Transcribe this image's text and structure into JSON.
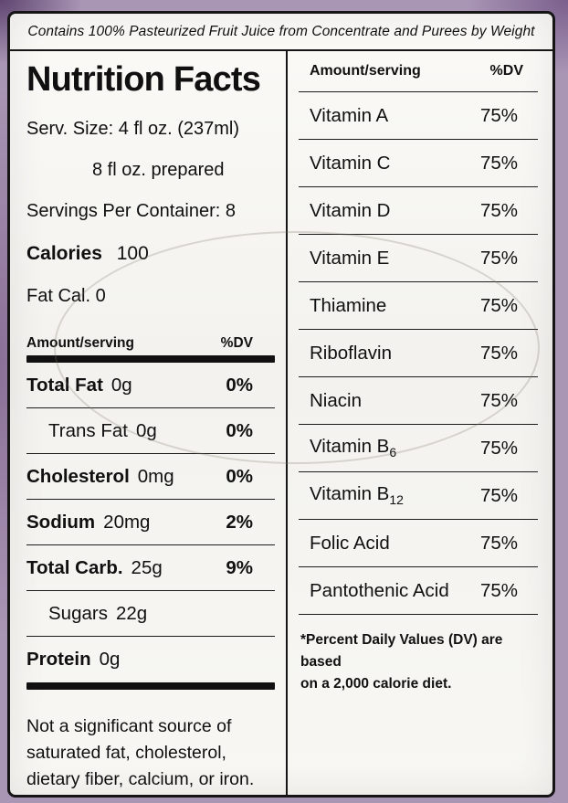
{
  "colors": {
    "backdrop": "#a995b4",
    "label_bg": "#f8f7f3",
    "ink": "#101010"
  },
  "top_note": "Contains 100% Pasteurized Fruit Juice from Concentrate and Purees by Weight",
  "left": {
    "title": "Nutrition Facts",
    "serv_size_line1": "Serv. Size: 4 fl oz. (237ml)",
    "serv_size_line2": "8 fl oz. prepared",
    "servings_per_container": "Servings Per Container: 8",
    "calories_label": "Calories",
    "calories_value": "100",
    "fat_cal": "Fat Cal. 0",
    "table": {
      "header_amount": "Amount/serving",
      "header_dv": "%DV",
      "rows": [
        {
          "label": "Total Fat",
          "value": "0g",
          "dv": "0%"
        },
        {
          "label": "Trans Fat",
          "value": "0g",
          "dv": "0%"
        },
        {
          "label": "Cholesterol",
          "value": "0mg",
          "dv": "0%"
        },
        {
          "label": "Sodium",
          "value": "20mg",
          "dv": "2%"
        },
        {
          "label": "Total Carb.",
          "value": "25g",
          "dv": "9%"
        },
        {
          "label": "Sugars",
          "value": "22g",
          "dv": ""
        },
        {
          "label": "Protein",
          "value": "0g",
          "dv": ""
        }
      ]
    },
    "not_significant_lines": [
      "Not a significant source of",
      "saturated fat, cholesterol,",
      "dietary fiber, calcium, or iron."
    ]
  },
  "right": {
    "header_amount": "Amount/serving",
    "header_dv": "%DV",
    "rows": [
      {
        "label": "Vitamin A",
        "dv": "75%"
      },
      {
        "label": "Vitamin C",
        "dv": "75%"
      },
      {
        "label": "Vitamin D",
        "dv": "75%"
      },
      {
        "label": "Vitamin E",
        "dv": "75%"
      },
      {
        "label": "Thiamine",
        "dv": "75%"
      },
      {
        "label": "Riboflavin",
        "dv": "75%"
      },
      {
        "label": "Niacin",
        "dv": "75%"
      },
      {
        "label": "Vitamin B",
        "sub": "6",
        "dv": "75%"
      },
      {
        "label": "Vitamin B",
        "sub": "12",
        "dv": "75%"
      },
      {
        "label": "Folic Acid",
        "dv": "75%"
      },
      {
        "label": "Pantothenic Acid",
        "dv": "75%"
      }
    ],
    "footnote_lines": [
      "*Percent Daily Values (DV) are based",
      "on a 2,000 calorie diet."
    ]
  }
}
